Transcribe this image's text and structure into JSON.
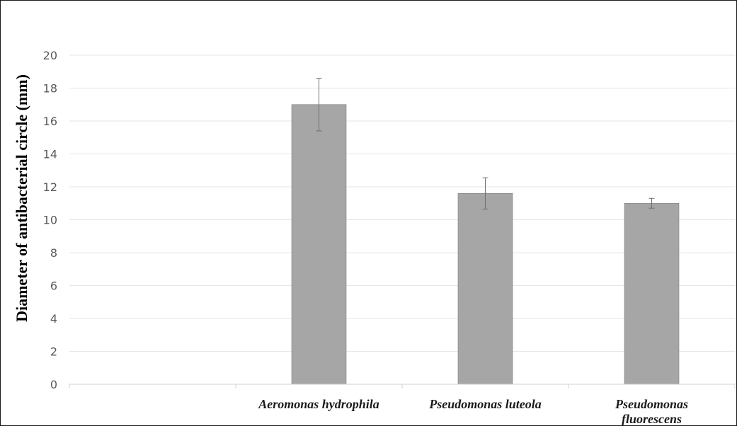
{
  "chart_data": {
    "type": "bar",
    "ylabel": "Diameter of antibacterial circle (mm)",
    "xlabel": "",
    "ylim": [
      0,
      20
    ],
    "yticks": [
      "0",
      "2",
      "4",
      "6",
      "8",
      "10",
      "12",
      "14",
      "16",
      "18",
      "20"
    ],
    "grid": true,
    "categories": [
      {
        "lines": [
          ""
        ]
      },
      {
        "lines": [
          "Aeromonas hydrophila"
        ]
      },
      {
        "lines": [
          "Pseudomonas luteola"
        ]
      },
      {
        "lines": [
          "Pseudomonas",
          "fluorescens"
        ]
      }
    ],
    "values": [
      null,
      17.0,
      11.6,
      11.0
    ],
    "errors": [
      null,
      1.6,
      0.95,
      0.3
    ],
    "bar_color": "#a6a6a6",
    "bar_edge_color": "#7f7f7f",
    "grid_color": "#e6e6e6",
    "axis_color": "#d0d0d0"
  }
}
